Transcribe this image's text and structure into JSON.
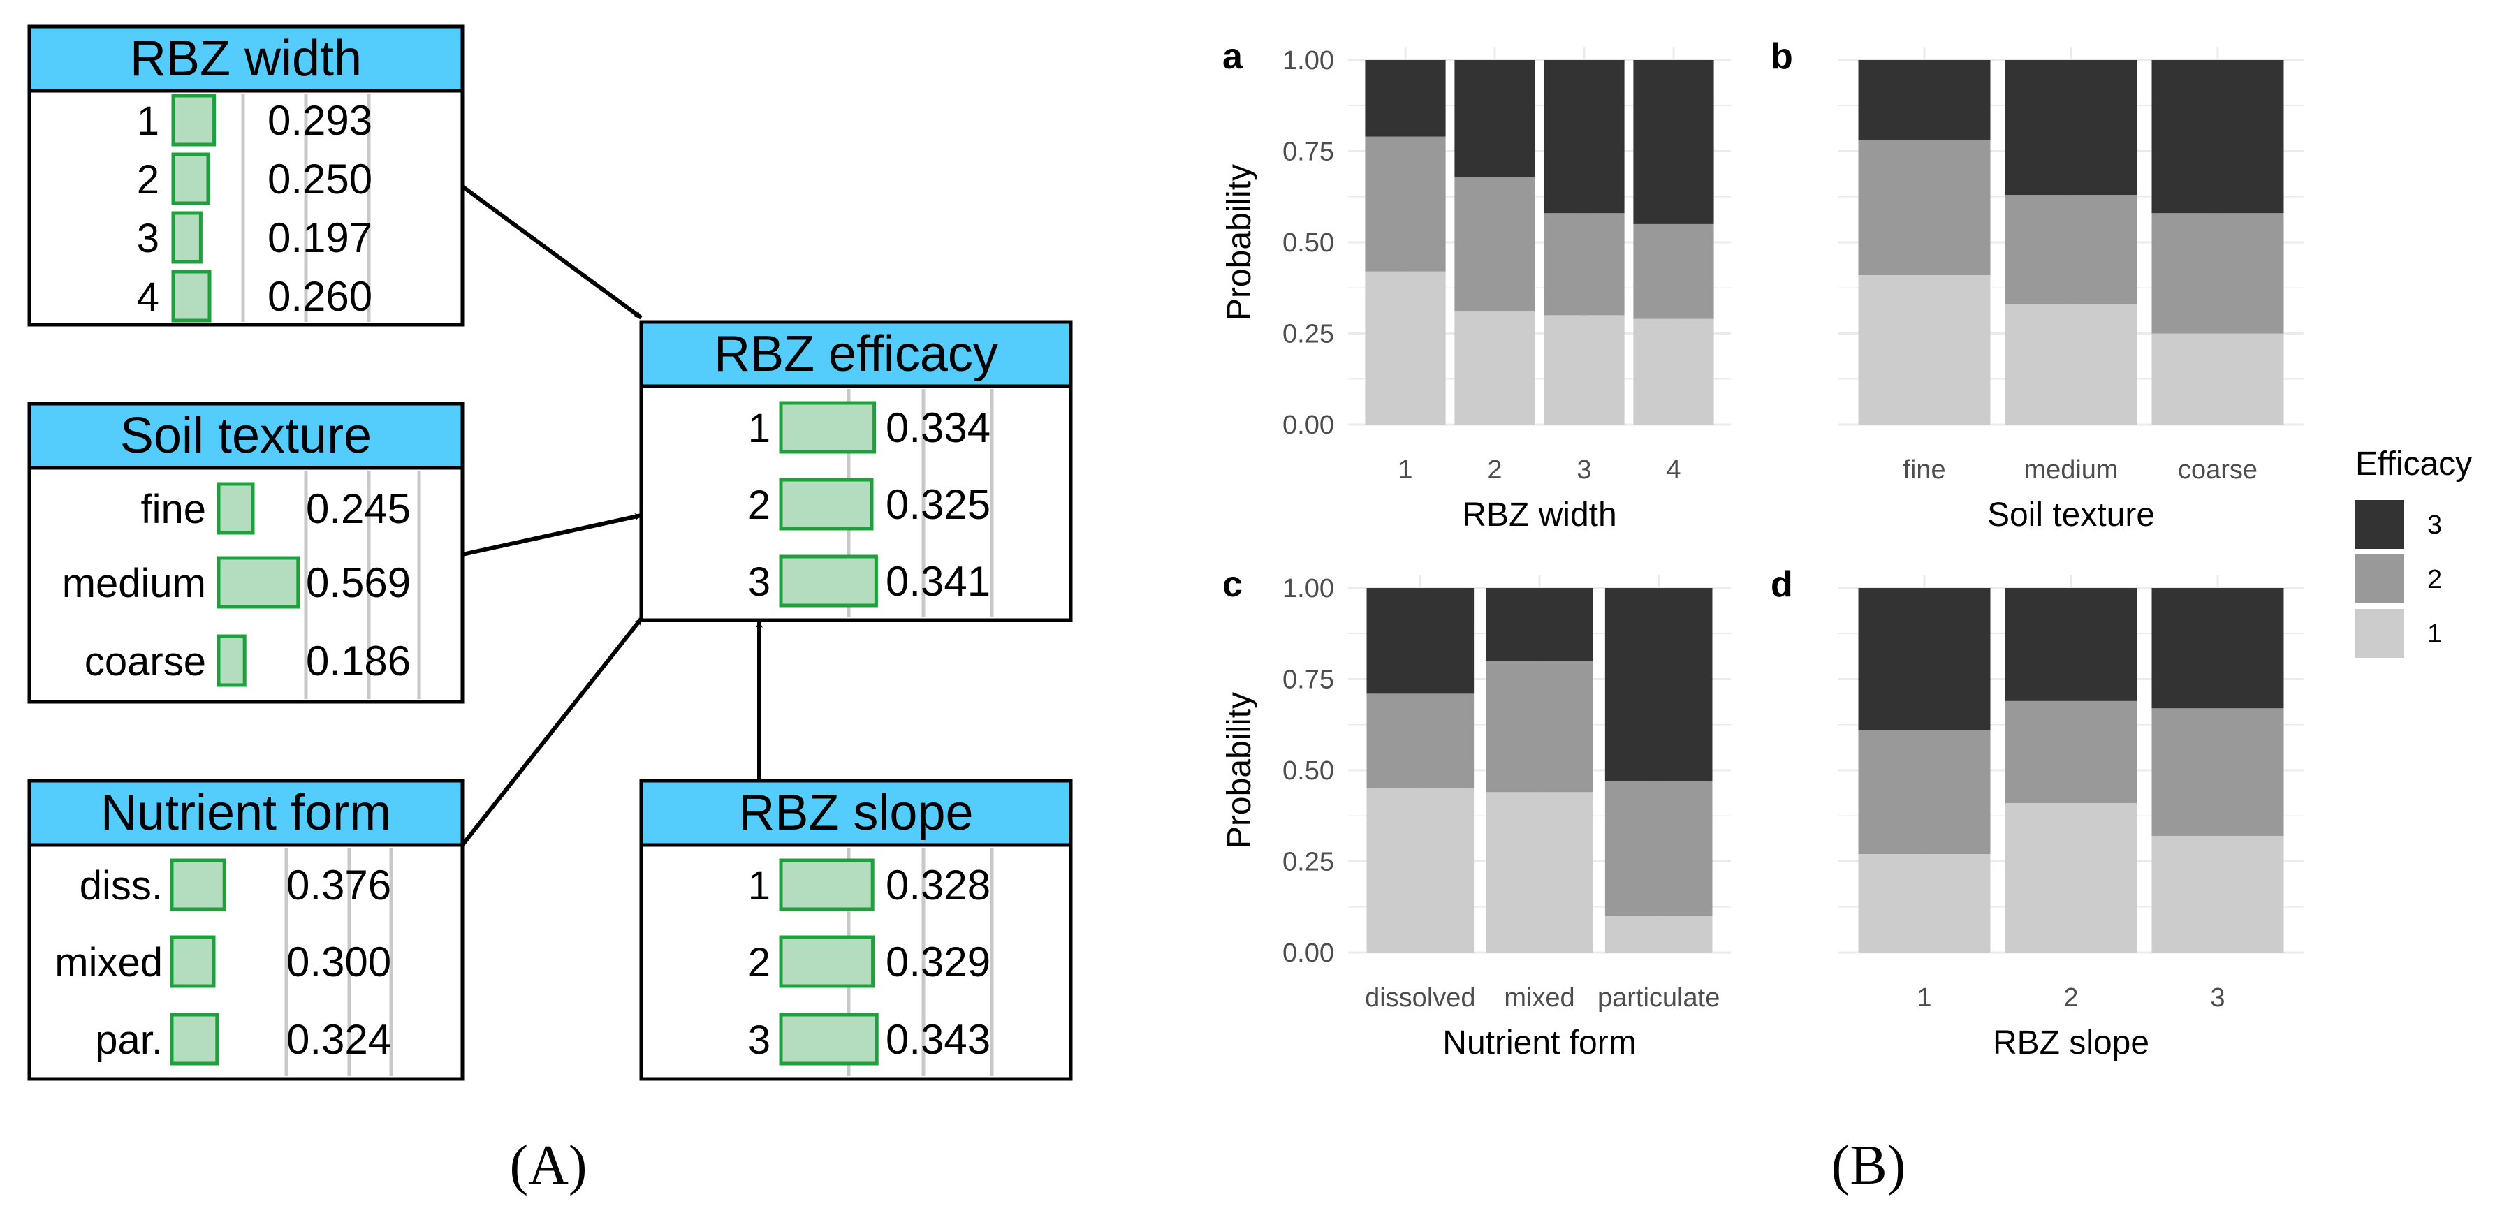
{
  "captions": {
    "a": "(A)",
    "b": "(B)"
  },
  "network": {
    "title_bg": "#55cdfc",
    "bar_fill": "#b4dcbf",
    "bar_stroke": "#1ea03c",
    "nodes": [
      {
        "id": "width",
        "title": "RBZ width",
        "states": [
          {
            "label": "1",
            "value": 0.293,
            "text": "0.293"
          },
          {
            "label": "2",
            "value": 0.25,
            "text": "0.250"
          },
          {
            "label": "3",
            "value": 0.197,
            "text": "0.197"
          },
          {
            "label": "4",
            "value": 0.26,
            "text": "0.260"
          }
        ]
      },
      {
        "id": "soil",
        "title": "Soil texture",
        "states": [
          {
            "label": "fine",
            "value": 0.245,
            "text": "0.245"
          },
          {
            "label": "medium",
            "value": 0.569,
            "text": "0.569"
          },
          {
            "label": "coarse",
            "value": 0.186,
            "text": "0.186"
          }
        ]
      },
      {
        "id": "nutrient",
        "title": "Nutrient form",
        "states": [
          {
            "label": "diss.",
            "value": 0.376,
            "text": "0.376"
          },
          {
            "label": "mixed",
            "value": 0.3,
            "text": "0.300"
          },
          {
            "label": "par.",
            "value": 0.324,
            "text": "0.324"
          }
        ]
      },
      {
        "id": "efficacy",
        "title": "RBZ efficacy",
        "states": [
          {
            "label": "1",
            "value": 0.334,
            "text": "0.334"
          },
          {
            "label": "2",
            "value": 0.325,
            "text": "0.325"
          },
          {
            "label": "3",
            "value": 0.341,
            "text": "0.341"
          }
        ]
      },
      {
        "id": "slope",
        "title": "RBZ slope",
        "states": [
          {
            "label": "1",
            "value": 0.328,
            "text": "0.328"
          },
          {
            "label": "2",
            "value": 0.329,
            "text": "0.329"
          },
          {
            "label": "3",
            "value": 0.343,
            "text": "0.343"
          }
        ]
      }
    ],
    "edges": [
      [
        "width",
        "efficacy"
      ],
      [
        "soil",
        "efficacy"
      ],
      [
        "nutrient",
        "efficacy"
      ],
      [
        "slope",
        "efficacy"
      ]
    ]
  },
  "legend": {
    "title": "Efficacy",
    "order": [
      "3",
      "2",
      "1"
    ]
  },
  "colors": {
    "1": "#cccccc",
    "2": "#999999",
    "3": "#333333",
    "grid": "#ebebeb"
  },
  "chart_data": [
    {
      "type": "bar",
      "stacked": true,
      "panel": "a",
      "xlabel": "RBZ width",
      "ylabel": "Probability",
      "ylim": [
        0,
        1
      ],
      "yticks": [
        "0.00",
        "0.25",
        "0.50",
        "0.75",
        "1.00"
      ],
      "categories": [
        "1",
        "2",
        "3",
        "4"
      ],
      "series": [
        {
          "name": "1",
          "values": [
            0.42,
            0.31,
            0.3,
            0.29
          ]
        },
        {
          "name": "2",
          "values": [
            0.37,
            0.37,
            0.28,
            0.26
          ]
        },
        {
          "name": "3",
          "values": [
            0.21,
            0.32,
            0.42,
            0.45
          ]
        }
      ]
    },
    {
      "type": "bar",
      "stacked": true,
      "panel": "b",
      "xlabel": "Soil texture",
      "ylabel": "",
      "ylim": [
        0,
        1
      ],
      "yticks": [],
      "categories": [
        "fine",
        "medium",
        "coarse"
      ],
      "series": [
        {
          "name": "1",
          "values": [
            0.41,
            0.33,
            0.25
          ]
        },
        {
          "name": "2",
          "values": [
            0.37,
            0.3,
            0.33
          ]
        },
        {
          "name": "3",
          "values": [
            0.22,
            0.37,
            0.42
          ]
        }
      ]
    },
    {
      "type": "bar",
      "stacked": true,
      "panel": "c",
      "xlabel": "Nutrient form",
      "ylabel": "Probability",
      "ylim": [
        0,
        1
      ],
      "yticks": [
        "0.00",
        "0.25",
        "0.50",
        "0.75",
        "1.00"
      ],
      "categories": [
        "dissolved",
        "mixed",
        "particulate"
      ],
      "series": [
        {
          "name": "1",
          "values": [
            0.45,
            0.44,
            0.1
          ]
        },
        {
          "name": "2",
          "values": [
            0.26,
            0.36,
            0.37
          ]
        },
        {
          "name": "3",
          "values": [
            0.29,
            0.2,
            0.53
          ]
        }
      ]
    },
    {
      "type": "bar",
      "stacked": true,
      "panel": "d",
      "xlabel": "RBZ slope",
      "ylabel": "",
      "ylim": [
        0,
        1
      ],
      "yticks": [],
      "categories": [
        "1",
        "2",
        "3"
      ],
      "series": [
        {
          "name": "1",
          "values": [
            0.27,
            0.41,
            0.32
          ]
        },
        {
          "name": "2",
          "values": [
            0.34,
            0.28,
            0.35
          ]
        },
        {
          "name": "3",
          "values": [
            0.39,
            0.31,
            0.33
          ]
        }
      ]
    }
  ]
}
